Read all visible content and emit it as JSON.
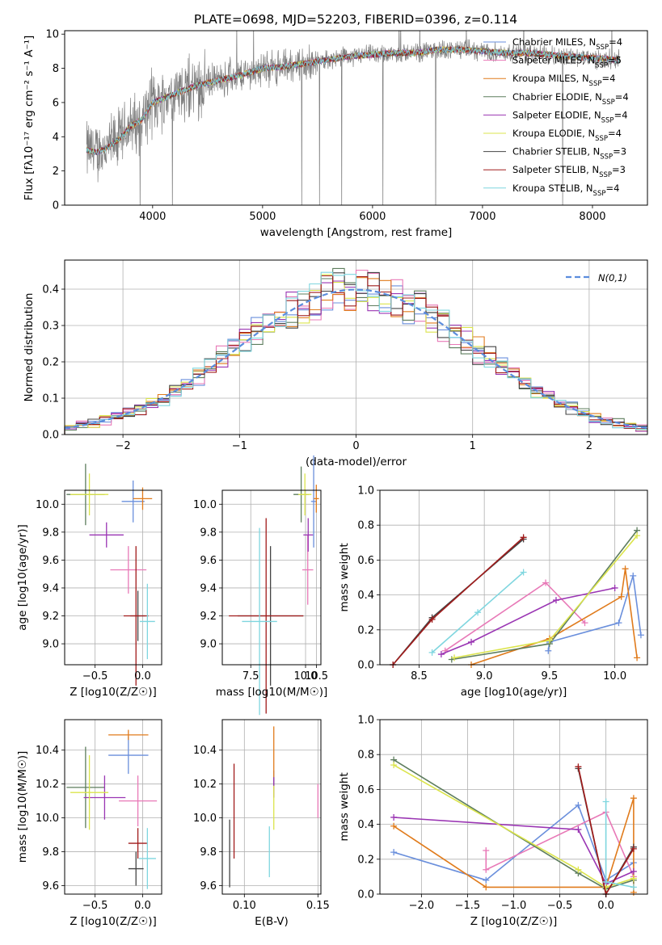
{
  "figure": {
    "title": "PLATE=0698, MJD=52203, FIBERID=0396, z=0.114"
  },
  "model_colors": [
    "#6a8fdc",
    "#e879b7",
    "#e07b1c",
    "#5d7d5d",
    "#9a35b3",
    "#dbe44c",
    "#444444",
    "#a11b1b",
    "#7fd6df"
  ],
  "chart_data": [
    {
      "id": "spectrum",
      "type": "line",
      "xlabel": "wavelength [Angstrom, rest frame]",
      "ylabel": "Flux [fλ10⁻¹⁷ erg cm⁻² s⁻¹ A⁻¹]",
      "xlim": [
        3200,
        8500
      ],
      "ylim": [
        0,
        10.2
      ],
      "xticks": [
        4000,
        5000,
        6000,
        7000,
        8000
      ],
      "yticks": [
        0,
        2,
        4,
        6,
        8,
        10
      ],
      "grid": false,
      "legend_position": "right",
      "data_color": "#808080",
      "observed_envelope": {
        "x": [
          3400,
          3500,
          3600,
          3700,
          3800,
          3900,
          4000,
          4200,
          4400,
          4600,
          4800,
          5000,
          5200,
          5400,
          5600,
          5800,
          6000,
          6200,
          6400,
          6600,
          6800,
          7000,
          7200,
          7400,
          7600,
          7800,
          8000,
          8250
        ],
        "y": [
          3.2,
          3.1,
          3.4,
          3.9,
          4.6,
          5.0,
          6.0,
          6.5,
          7.0,
          7.3,
          7.6,
          8.0,
          8.1,
          8.3,
          8.5,
          8.7,
          8.8,
          8.9,
          8.9,
          9.1,
          9.1,
          9.0,
          8.9,
          8.9,
          8.8,
          8.7,
          8.6,
          8.5
        ]
      },
      "series": [
        {
          "name": "Chabrier MILES",
          "nssp": "4"
        },
        {
          "name": "Salpeter MILES",
          "nssp": "5"
        },
        {
          "name": "Kroupa MILES",
          "nssp": "4"
        },
        {
          "name": "Chabrier ELODIE",
          "nssp": "4"
        },
        {
          "name": "Salpeter ELODIE",
          "nssp": "4"
        },
        {
          "name": "Kroupa ELODIE",
          "nssp": "4"
        },
        {
          "name": "Chabrier STELIB",
          "nssp": "3"
        },
        {
          "name": "Salpeter STELIB",
          "nssp": "3"
        },
        {
          "name": "Kroupa STELIB",
          "nssp": "4"
        }
      ]
    },
    {
      "id": "residuals",
      "type": "line",
      "xlabel": "(data-model)/error",
      "ylabel": "Normed distribution",
      "xlim": [
        -2.5,
        2.5
      ],
      "ylim": [
        0,
        0.48
      ],
      "xticks": [
        -2,
        -1,
        0,
        1,
        2
      ],
      "yticks": [
        0.0,
        0.1,
        0.2,
        0.3,
        0.4
      ],
      "grid": true,
      "legend_position": "top-right",
      "legend_label": "N(0,1)",
      "bin_edges_start": -2.5,
      "bin_width": 0.1,
      "note": "each model: histogram of residuals; reference: standard normal"
    },
    {
      "id": "age_vs_z",
      "type": "scatter",
      "xlabel": "Z [log10(Z/Z☉)]",
      "ylabel": "age  [log10(age/yr)]",
      "xlim": [
        -0.82,
        0.2
      ],
      "ylim": [
        8.85,
        10.1
      ],
      "xticks": [
        -0.5,
        0.0
      ],
      "yticks": [
        9.0,
        9.2,
        9.4,
        9.6,
        9.8,
        10.0
      ],
      "grid": true,
      "points": [
        {
          "x": -0.1,
          "y": 10.02,
          "xerr": 0.12,
          "yerr": 0.15
        },
        {
          "x": -0.15,
          "y": 9.53,
          "xerr": 0.19,
          "yerr": 0.17
        },
        {
          "x": 0.0,
          "y": 10.04,
          "xerr": 0.1,
          "yerr": 0.08
        },
        {
          "x": -0.6,
          "y": 10.07,
          "xerr": 0.2,
          "yerr": 0.22
        },
        {
          "x": -0.38,
          "y": 9.78,
          "xerr": 0.18,
          "yerr": 0.09
        },
        {
          "x": -0.56,
          "y": 10.07,
          "xerr": 0.2,
          "yerr": 0.15
        },
        {
          "x": -0.05,
          "y": 9.2,
          "xerr": 0.08,
          "yerr": 0.18
        },
        {
          "x": -0.07,
          "y": 9.2,
          "xerr": 0.13,
          "yerr": 0.5
        },
        {
          "x": 0.05,
          "y": 9.16,
          "xerr": 0.08,
          "yerr": 0.27
        }
      ]
    },
    {
      "id": "age_vs_mass",
      "type": "scatter",
      "xlabel": "mass [log10(M/M☉)]",
      "ylabel": "",
      "xlim": [
        6.2,
        10.7
      ],
      "ylim": [
        8.85,
        10.1
      ],
      "xticks": [
        7.5,
        10.0,
        10.5
      ],
      "xticklabels": [
        "7.5",
        "10.0",
        "10.5"
      ],
      "yticks": [
        9.0,
        9.2,
        9.4,
        9.6,
        9.8,
        10.0
      ],
      "grid": true,
      "points": [
        {
          "x": 10.37,
          "y": 10.02,
          "xerr": 0.12,
          "yerr": 0.33
        },
        {
          "x": 10.1,
          "y": 9.53,
          "xerr": 0.25,
          "yerr": 0.25
        },
        {
          "x": 10.49,
          "y": 10.04,
          "xerr": 0.12,
          "yerr": 0.1
        },
        {
          "x": 9.8,
          "y": 10.07,
          "xerr": 0.35,
          "yerr": 0.2
        },
        {
          "x": 10.12,
          "y": 9.78,
          "xerr": 0.22,
          "yerr": 0.12
        },
        {
          "x": 9.97,
          "y": 10.07,
          "xerr": 0.3,
          "yerr": 0.15
        },
        {
          "x": 8.4,
          "y": 9.2,
          "xerr": 1.5,
          "yerr": 0.5
        },
        {
          "x": 8.2,
          "y": 9.2,
          "xerr": 1.7,
          "yerr": 0.7
        },
        {
          "x": 7.9,
          "y": 9.16,
          "xerr": 0.8,
          "yerr": 0.67
        }
      ]
    },
    {
      "id": "weight_vs_age",
      "type": "line",
      "xlabel": "age  [log10(age/yr)]",
      "ylabel": "mass weight",
      "xlim": [
        8.2,
        10.25
      ],
      "ylim": [
        0,
        1.0
      ],
      "xticks": [
        8.5,
        9.0,
        9.5,
        10.0
      ],
      "yticks": [
        0.0,
        0.2,
        0.4,
        0.6,
        0.8,
        1.0
      ],
      "grid": true,
      "series": [
        {
          "x": [
            9.49,
            9.5,
            10.03,
            10.14,
            10.2
          ],
          "y": [
            0.08,
            0.13,
            0.24,
            0.51,
            0.17
          ]
        },
        {
          "x": [
            8.7,
            9.47,
            9.77
          ],
          "y": [
            0.08,
            0.47,
            0.24
          ]
        },
        {
          "x": [
            8.9,
            9.5,
            10.05,
            10.08,
            10.17
          ],
          "y": [
            0.0,
            0.15,
            0.39,
            0.55,
            0.04
          ]
        },
        {
          "x": [
            8.75,
            9.5,
            10.17
          ],
          "y": [
            0.03,
            0.12,
            0.77
          ]
        },
        {
          "x": [
            8.67,
            8.9,
            9.55,
            10.0
          ],
          "y": [
            0.06,
            0.13,
            0.37,
            0.44
          ]
        },
        {
          "x": [
            8.77,
            9.5,
            10.17
          ],
          "y": [
            0.04,
            0.14,
            0.74
          ]
        },
        {
          "x": [
            8.3,
            8.6,
            9.3
          ],
          "y": [
            0.0,
            0.27,
            0.72
          ]
        },
        {
          "x": [
            8.3,
            8.6,
            9.3
          ],
          "y": [
            0.0,
            0.26,
            0.73
          ]
        },
        {
          "x": [
            8.6,
            8.95,
            9.3
          ],
          "y": [
            0.07,
            0.3,
            0.53
          ]
        }
      ]
    },
    {
      "id": "mass_vs_z",
      "type": "scatter",
      "xlabel": "Z [log10(Z/Z☉)]",
      "ylabel": "mass [log10(M/M☉)]",
      "xlim": [
        -0.82,
        0.2
      ],
      "ylim": [
        9.55,
        10.58
      ],
      "xticks": [
        -0.5,
        0.0
      ],
      "yticks": [
        9.6,
        9.8,
        10.0,
        10.2,
        10.4
      ],
      "grid": true,
      "points": [
        {
          "x": -0.15,
          "y": 10.37,
          "xerr": 0.21,
          "yerr": 0.11
        },
        {
          "x": -0.05,
          "y": 10.1,
          "xerr": 0.2,
          "yerr": 0.15
        },
        {
          "x": -0.15,
          "y": 10.49,
          "xerr": 0.21,
          "yerr": 0.03
        },
        {
          "x": -0.6,
          "y": 10.18,
          "xerr": 0.2,
          "yerr": 0.24
        },
        {
          "x": -0.4,
          "y": 10.12,
          "xerr": 0.22,
          "yerr": 0.13
        },
        {
          "x": -0.56,
          "y": 10.15,
          "xerr": 0.2,
          "yerr": 0.22
        },
        {
          "x": -0.07,
          "y": 9.7,
          "xerr": 0.08,
          "yerr": 0.1
        },
        {
          "x": -0.05,
          "y": 9.85,
          "xerr": 0.1,
          "yerr": 0.09
        },
        {
          "x": 0.05,
          "y": 9.76,
          "xerr": 0.09,
          "yerr": 0.18
        }
      ]
    },
    {
      "id": "mass_vs_ebv",
      "type": "scatter",
      "xlabel": "E(B-V)",
      "ylabel": "",
      "xlim": [
        0.085,
        0.152
      ],
      "ylim": [
        9.55,
        10.58
      ],
      "xticks": [
        0.1,
        0.15
      ],
      "xticklabels": [
        "0.10",
        "0.15"
      ],
      "yticks": [
        9.6,
        9.8,
        10.0,
        10.2,
        10.4
      ],
      "grid": true,
      "points": [
        {
          "x": 0.12,
          "y": 10.22,
          "yerr": 0.06
        },
        {
          "x": 0.15,
          "y": 10.1,
          "yerr": 0.1
        },
        {
          "x": 0.12,
          "y": 10.36,
          "yerr": 0.18
        },
        {
          "x": 0.12,
          "y": 10.18,
          "yerr": 0.06
        },
        {
          "x": 0.12,
          "y": 10.18,
          "yerr": 0.06
        },
        {
          "x": 0.12,
          "y": 10.06,
          "yerr": 0.13
        },
        {
          "x": 0.09,
          "y": 9.79,
          "yerr": 0.2
        },
        {
          "x": 0.093,
          "y": 10.04,
          "yerr": 0.28
        },
        {
          "x": 0.117,
          "y": 9.8,
          "yerr": 0.15
        }
      ]
    },
    {
      "id": "weight_vs_z",
      "type": "line",
      "xlabel": "Z [log10(Z/Z☉)]",
      "ylabel": "mass weight",
      "xlim": [
        -2.45,
        0.45
      ],
      "ylim": [
        0,
        1.0
      ],
      "xticks": [
        -2.0,
        -1.5,
        -1.0,
        -0.5,
        0.0
      ],
      "yticks": [
        0.0,
        0.2,
        0.4,
        0.6,
        0.8,
        1.0
      ],
      "grid": true,
      "series": [
        {
          "x": [
            -2.3,
            -1.3,
            -0.3,
            0.0,
            0.3
          ],
          "y": [
            0.24,
            0.08,
            0.51,
            0.08,
            0.18
          ]
        },
        {
          "x": [
            -1.3,
            -1.3,
            0.0,
            0.3
          ],
          "y": [
            0.25,
            0.14,
            0.47,
            0.1
          ]
        },
        {
          "x": [
            -2.3,
            -1.3,
            0.0,
            0.3,
            0.3
          ],
          "y": [
            0.39,
            0.04,
            0.04,
            0.55,
            0.01
          ]
        },
        {
          "x": [
            -2.3,
            -0.3,
            0.0,
            0.3
          ],
          "y": [
            0.77,
            0.12,
            0.03,
            0.08
          ]
        },
        {
          "x": [
            -2.3,
            -0.3,
            0.0,
            0.3
          ],
          "y": [
            0.44,
            0.37,
            0.06,
            0.13
          ]
        },
        {
          "x": [
            -2.3,
            -0.3,
            0.0,
            0.3
          ],
          "y": [
            0.74,
            0.14,
            0.04,
            0.09
          ]
        },
        {
          "x": [
            -0.3,
            0.0,
            0.3
          ],
          "y": [
            0.72,
            0.0,
            0.27
          ]
        },
        {
          "x": [
            -0.3,
            0.0,
            0.3
          ],
          "y": [
            0.73,
            0.0,
            0.26
          ]
        },
        {
          "x": [
            0.0,
            0.0,
            0.3
          ],
          "y": [
            0.53,
            0.07,
            0.04
          ]
        }
      ]
    }
  ]
}
